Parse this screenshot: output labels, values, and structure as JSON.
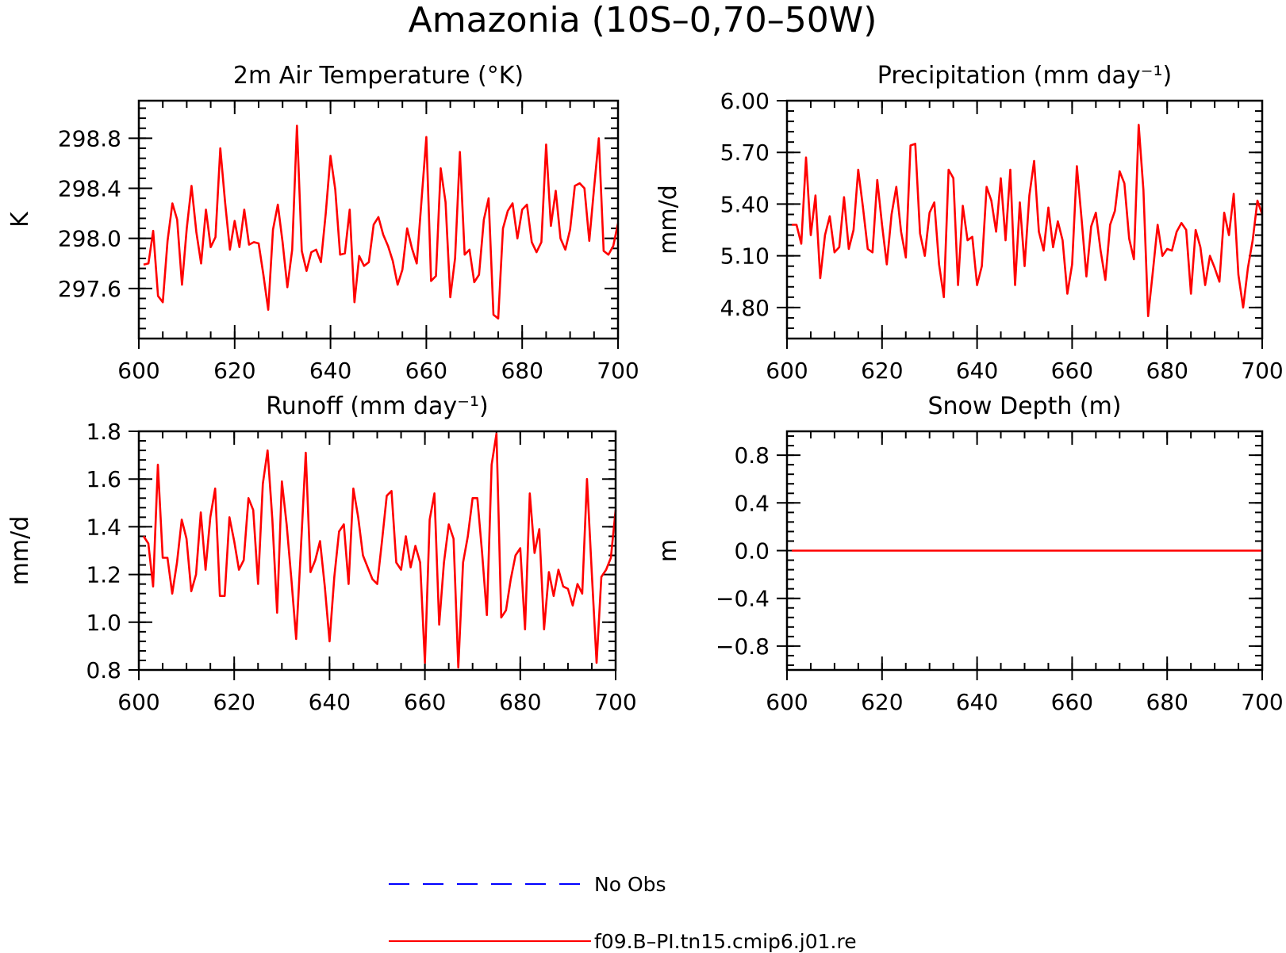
{
  "figure": {
    "title": "Amazonia (10S–0,70–50W)"
  },
  "legend": {
    "items": [
      {
        "label": "No Obs",
        "color": "#0000ff",
        "dash": true
      },
      {
        "label": "f09.B–PI.tn15.cmip6.j01.re",
        "color": "#ff0000",
        "dash": false
      }
    ]
  },
  "chart_data": [
    {
      "type": "line",
      "title": "2m Air Temperature (°K)",
      "ylabel": "K",
      "xlim": [
        600,
        700
      ],
      "ylim": [
        297.2,
        299.1
      ],
      "xticks": [
        "600",
        "620",
        "640",
        "660",
        "680",
        "700"
      ],
      "yticks": [
        "297.6",
        "298.0",
        "298.4",
        "298.8"
      ],
      "series": [
        {
          "color": "#ff0000",
          "x": [
            601,
            602,
            603,
            604,
            605,
            606,
            607,
            608,
            609,
            610,
            611,
            612,
            613,
            614,
            615,
            616,
            617,
            618,
            619,
            620,
            621,
            622,
            623,
            624,
            625,
            626,
            627,
            628,
            629,
            630,
            631,
            632,
            633,
            634,
            635,
            636,
            637,
            638,
            639,
            640,
            641,
            642,
            643,
            644,
            645,
            646,
            647,
            648,
            649,
            650,
            651,
            652,
            653,
            654,
            655,
            656,
            657,
            658,
            659,
            660,
            661,
            662,
            663,
            664,
            665,
            666,
            667,
            668,
            669,
            670,
            671,
            672,
            673,
            674,
            675,
            676,
            677,
            678,
            679,
            680,
            681,
            682,
            683,
            684,
            685,
            686,
            687,
            688,
            689,
            690,
            691,
            692,
            693,
            694,
            695,
            696,
            697,
            698,
            699,
            700
          ],
          "y": [
            297.79,
            297.8,
            298.06,
            297.54,
            297.49,
            297.98,
            298.28,
            298.15,
            297.63,
            298.08,
            298.42,
            298.05,
            297.8,
            298.23,
            297.93,
            298.01,
            298.72,
            298.29,
            297.91,
            298.14,
            297.93,
            298.23,
            297.95,
            297.97,
            297.96,
            297.71,
            297.43,
            298.07,
            298.27,
            297.97,
            297.61,
            297.91,
            298.9,
            297.9,
            297.74,
            297.89,
            297.91,
            297.81,
            298.2,
            298.66,
            298.39,
            297.87,
            297.88,
            298.23,
            297.49,
            297.86,
            297.78,
            297.81,
            298.11,
            298.17,
            298.03,
            297.94,
            297.82,
            297.63,
            297.75,
            298.08,
            297.92,
            297.8,
            298.31,
            298.81,
            297.66,
            297.7,
            298.56,
            298.29,
            297.53,
            297.84,
            298.69,
            297.87,
            297.91,
            297.65,
            297.71,
            298.15,
            298.32,
            297.39,
            297.36,
            298.08,
            298.22,
            298.28,
            298.0,
            298.23,
            298.27,
            297.97,
            297.89,
            297.97,
            298.75,
            298.1,
            298.38,
            298.0,
            297.91,
            298.07,
            298.42,
            298.44,
            298.4,
            297.98,
            298.4,
            298.8,
            297.9,
            297.87,
            297.94,
            298.12
          ]
        }
      ]
    },
    {
      "type": "line",
      "title": "Precipitation (mm day⁻¹)",
      "ylabel": "mm/d",
      "xlim": [
        600,
        700
      ],
      "ylim": [
        4.62,
        6.0
      ],
      "xticks": [
        "600",
        "620",
        "640",
        "660",
        "680",
        "700"
      ],
      "yticks": [
        "4.80",
        "5.10",
        "5.40",
        "5.70",
        "6.00"
      ],
      "series": [
        {
          "color": "#ff0000",
          "x": [
            601,
            602,
            603,
            604,
            605,
            606,
            607,
            608,
            609,
            610,
            611,
            612,
            613,
            614,
            615,
            616,
            617,
            618,
            619,
            620,
            621,
            622,
            623,
            624,
            625,
            626,
            627,
            628,
            629,
            630,
            631,
            632,
            633,
            634,
            635,
            636,
            637,
            638,
            639,
            640,
            641,
            642,
            643,
            644,
            645,
            646,
            647,
            648,
            649,
            650,
            651,
            652,
            653,
            654,
            655,
            656,
            657,
            658,
            659,
            660,
            661,
            662,
            663,
            664,
            665,
            666,
            667,
            668,
            669,
            670,
            671,
            672,
            673,
            674,
            675,
            676,
            677,
            678,
            679,
            680,
            681,
            682,
            683,
            684,
            685,
            686,
            687,
            688,
            689,
            690,
            691,
            692,
            693,
            694,
            695,
            696,
            697,
            698,
            699,
            700
          ],
          "y": [
            5.28,
            5.28,
            5.17,
            5.67,
            5.22,
            5.45,
            4.97,
            5.22,
            5.33,
            5.12,
            5.15,
            5.44,
            5.14,
            5.25,
            5.6,
            5.38,
            5.14,
            5.12,
            5.54,
            5.28,
            5.05,
            5.34,
            5.5,
            5.24,
            5.09,
            5.74,
            5.75,
            5.23,
            5.1,
            5.35,
            5.41,
            5.05,
            4.86,
            5.6,
            5.55,
            4.93,
            5.39,
            5.19,
            5.21,
            4.93,
            5.04,
            5.5,
            5.42,
            5.24,
            5.55,
            5.19,
            5.6,
            4.93,
            5.41,
            5.04,
            5.45,
            5.65,
            5.24,
            5.13,
            5.38,
            5.15,
            5.3,
            5.19,
            4.88,
            5.05,
            5.62,
            5.31,
            4.98,
            5.27,
            5.35,
            5.13,
            4.96,
            5.28,
            5.36,
            5.59,
            5.52,
            5.2,
            5.08,
            5.86,
            5.48,
            4.75,
            5.01,
            5.28,
            5.1,
            5.14,
            5.13,
            5.24,
            5.29,
            5.25,
            4.88,
            5.25,
            5.15,
            4.93,
            5.1,
            5.03,
            4.95,
            5.35,
            5.22,
            5.46,
            4.99,
            4.8,
            5.03,
            5.19,
            5.42,
            5.34
          ]
        }
      ]
    },
    {
      "type": "line",
      "title": "Runoff (mm day⁻¹)",
      "ylabel": "mm/d",
      "xlim": [
        600,
        700
      ],
      "ylim": [
        0.8,
        1.8
      ],
      "xticks": [
        "600",
        "620",
        "640",
        "660",
        "680",
        "700"
      ],
      "yticks": [
        "0.8",
        "1.0",
        "1.2",
        "1.4",
        "1.6",
        "1.8"
      ],
      "series": [
        {
          "color": "#ff0000",
          "x": [
            601,
            602,
            603,
            604,
            605,
            606,
            607,
            608,
            609,
            610,
            611,
            612,
            613,
            614,
            615,
            616,
            617,
            618,
            619,
            620,
            621,
            622,
            623,
            624,
            625,
            626,
            627,
            628,
            629,
            630,
            631,
            632,
            633,
            634,
            635,
            636,
            637,
            638,
            639,
            640,
            641,
            642,
            643,
            644,
            645,
            646,
            647,
            648,
            649,
            650,
            651,
            652,
            653,
            654,
            655,
            656,
            657,
            658,
            659,
            660,
            661,
            662,
            663,
            664,
            665,
            666,
            667,
            668,
            669,
            670,
            671,
            672,
            673,
            674,
            675,
            676,
            677,
            678,
            679,
            680,
            681,
            682,
            683,
            684,
            685,
            686,
            687,
            688,
            689,
            690,
            691,
            692,
            693,
            694,
            695,
            696,
            697,
            698,
            699,
            700
          ],
          "y": [
            1.36,
            1.33,
            1.15,
            1.66,
            1.27,
            1.27,
            1.12,
            1.25,
            1.43,
            1.35,
            1.13,
            1.2,
            1.46,
            1.22,
            1.44,
            1.56,
            1.11,
            1.11,
            1.44,
            1.34,
            1.22,
            1.26,
            1.52,
            1.47,
            1.16,
            1.58,
            1.72,
            1.43,
            1.04,
            1.59,
            1.41,
            1.18,
            0.93,
            1.31,
            1.71,
            1.21,
            1.26,
            1.34,
            1.15,
            0.92,
            1.19,
            1.38,
            1.41,
            1.16,
            1.56,
            1.44,
            1.28,
            1.23,
            1.18,
            1.16,
            1.34,
            1.53,
            1.55,
            1.25,
            1.22,
            1.36,
            1.23,
            1.32,
            1.25,
            0.83,
            1.43,
            1.54,
            0.99,
            1.25,
            1.41,
            1.35,
            0.81,
            1.25,
            1.36,
            1.52,
            1.52,
            1.29,
            1.03,
            1.66,
            1.79,
            1.02,
            1.05,
            1.18,
            1.28,
            1.31,
            0.97,
            1.54,
            1.29,
            1.39,
            0.97,
            1.21,
            1.11,
            1.22,
            1.15,
            1.14,
            1.07,
            1.16,
            1.12,
            1.6,
            1.21,
            0.83,
            1.19,
            1.22,
            1.27,
            1.47
          ]
        }
      ]
    },
    {
      "type": "line",
      "title": "Snow Depth (m)",
      "ylabel": "m",
      "xlim": [
        600,
        700
      ],
      "ylim": [
        -1.0,
        1.0
      ],
      "xticks": [
        "600",
        "620",
        "640",
        "660",
        "680",
        "700"
      ],
      "yticks": [
        "−0.8",
        "−0.4",
        "0.0",
        "0.4",
        "0.8"
      ],
      "series": [
        {
          "color": "#ff0000",
          "x": [
            601,
            700
          ],
          "y": [
            0.0,
            0.0
          ]
        }
      ]
    }
  ]
}
